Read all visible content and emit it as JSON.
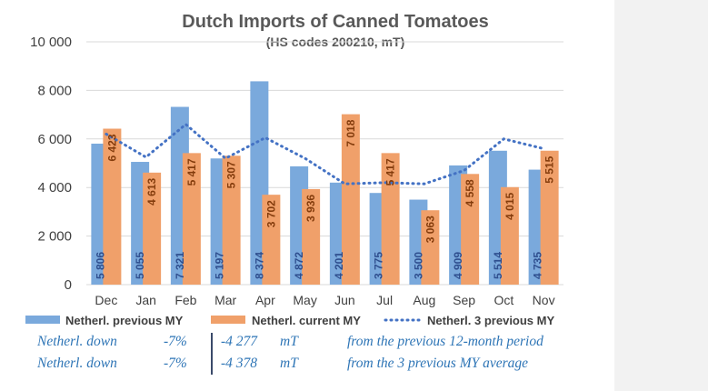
{
  "chart_data": {
    "type": "bar",
    "title": "Dutch Imports  of Canned Tomatoes",
    "subtitle": "(HS codes 200210, mT)",
    "categories": [
      "Dec",
      "Jan",
      "Feb",
      "Mar",
      "Apr",
      "May",
      "Jun",
      "Jul",
      "Aug",
      "Sep",
      "Oct",
      "Nov"
    ],
    "series": [
      {
        "name": "Netherl. previous MY",
        "kind": "bar",
        "color": "#7aa9dc",
        "values": [
          5806,
          5055,
          7321,
          5197,
          8374,
          4872,
          4201,
          3775,
          3500,
          4909,
          5514,
          4735
        ],
        "labels": [
          "5 806",
          "5 055",
          "7 321",
          "5 197",
          "8 374",
          "4 872",
          "4 201",
          "3 775",
          "3 500",
          "4 909",
          "5 514",
          "4 735"
        ],
        "label_color": "#2f4f8f"
      },
      {
        "name": "Netherl. current MY",
        "kind": "bar",
        "color": "#f0a06a",
        "values": [
          6423,
          4613,
          5417,
          5307,
          3702,
          3936,
          7018,
          5417,
          3063,
          4558,
          4015,
          5515
        ],
        "labels": [
          "6 423",
          "4 613",
          "5 417",
          "5 307",
          "3 702",
          "3 936",
          "7 018",
          "5 417",
          "3 063",
          "4 558",
          "4 015",
          "5 515"
        ],
        "label_color": "#843c0c"
      },
      {
        "name": "Netherl. 3 previous MY",
        "kind": "line",
        "style": "dotted",
        "color": "#4472c4",
        "values": [
          6200,
          5250,
          6600,
          5200,
          6050,
          5200,
          4150,
          4200,
          4150,
          4700,
          6000,
          5600
        ]
      }
    ],
    "y_ticks": [
      "0",
      "2 000",
      "4 000",
      "6 000",
      "8 000",
      "10 000"
    ],
    "ylim": [
      0,
      10000
    ],
    "grid": true,
    "legend_position": "bottom"
  },
  "footnotes": [
    {
      "who": "Netherl. down",
      "pct": "-7%",
      "amount": "-4 277",
      "unit": "mT",
      "desc": "from the previous 12-month period"
    },
    {
      "who": "Netherl. down",
      "pct": "-7%",
      "amount": "-4 378",
      "unit": "mT",
      "desc": "from the 3 previous MY average"
    }
  ]
}
